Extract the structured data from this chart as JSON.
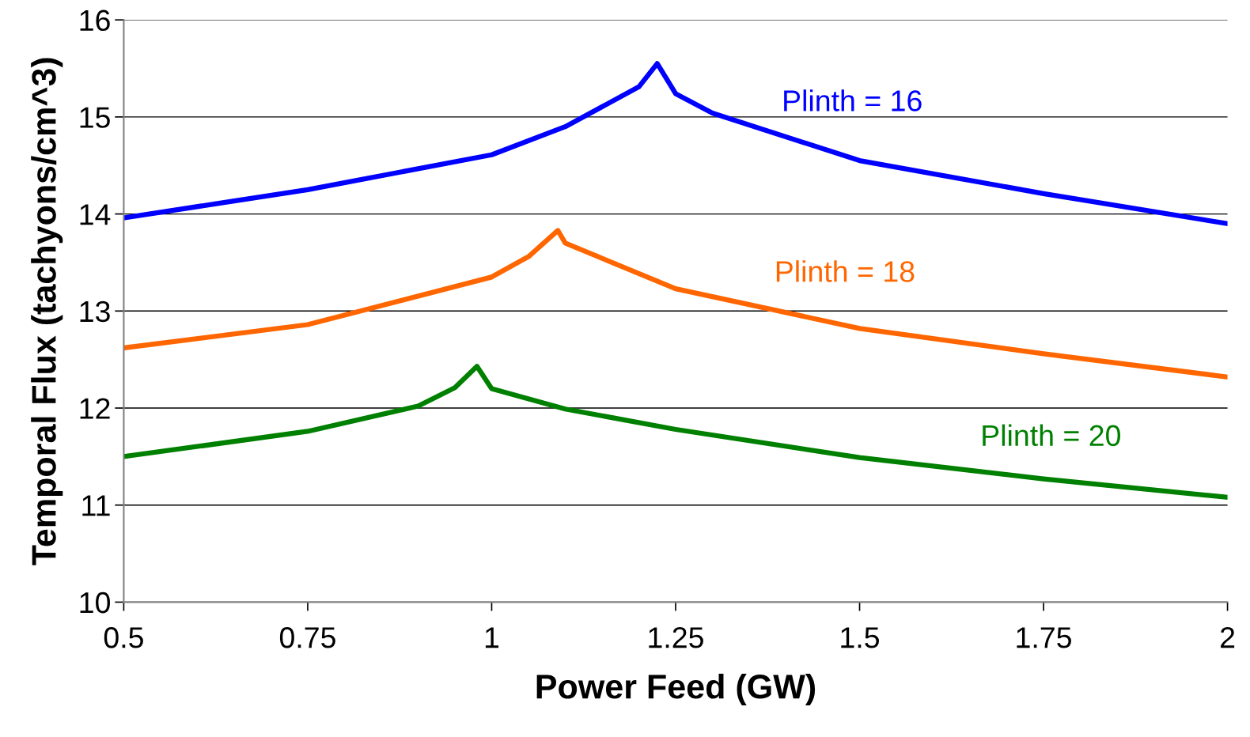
{
  "chart_data": {
    "type": "line",
    "xlabel": "Power Feed (GW)",
    "ylabel": "Temporal Flux (tachyons/cm^3)",
    "xlim": [
      0.5,
      2
    ],
    "xticks": [
      0.5,
      0.75,
      1,
      1.25,
      1.5,
      1.75,
      2
    ],
    "ylim": [
      10,
      16
    ],
    "yticks": [
      10,
      11,
      12,
      13,
      14,
      15,
      16
    ],
    "grid": "y",
    "legend": false,
    "marker": "none",
    "line_style": "solid",
    "series": [
      {
        "name": "Plinth = 16",
        "color": "#0000ff",
        "x": [
          0.5,
          0.75,
          1,
          1.1,
          1.2,
          1.225,
          1.25,
          1.3,
          1.5,
          1.75,
          2
        ],
        "values": [
          13.96,
          14.25,
          14.61,
          14.9,
          15.31,
          15.55,
          15.24,
          15.04,
          14.55,
          14.21,
          13.9
        ]
      },
      {
        "name": "Plinth = 18",
        "color": "#ff6600",
        "x": [
          0.5,
          0.75,
          1,
          1.05,
          1.09,
          1.1,
          1.25,
          1.5,
          1.75,
          2
        ],
        "values": [
          12.62,
          12.86,
          13.35,
          13.56,
          13.83,
          13.7,
          13.23,
          12.82,
          12.56,
          12.32
        ]
      },
      {
        "name": "Plinth = 20",
        "color": "#008000",
        "x": [
          0.5,
          0.75,
          0.9,
          0.95,
          0.98,
          1,
          1.1,
          1.25,
          1.5,
          1.75,
          2
        ],
        "values": [
          11.5,
          11.76,
          12.02,
          12.21,
          12.43,
          12.2,
          11.99,
          11.78,
          11.49,
          11.27,
          11.08
        ]
      }
    ]
  }
}
